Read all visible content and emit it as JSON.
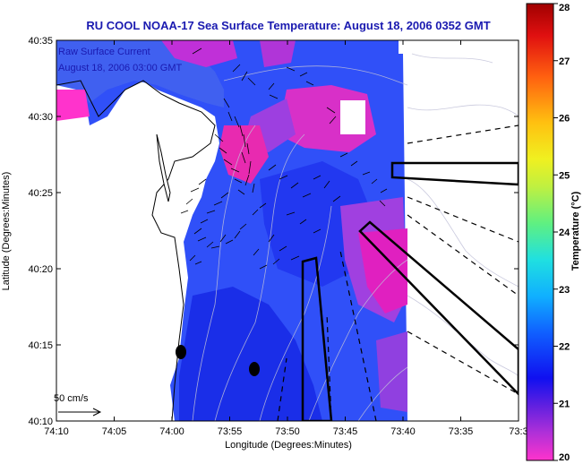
{
  "title": "RU COOL  NOAA-17  Sea Surface Temperature:  August 18, 2006 0352 GMT",
  "legend": {
    "line1": "Raw Surface Current",
    "line2": "August 18, 2006 03:00 GMT"
  },
  "scale_label": "50 cm/s",
  "axes": {
    "xlabel": "Longitude (Degrees:Minutes)",
    "ylabel": "Latitude (Degrees:Minutes)",
    "x_ticks": [
      "74:10",
      "74:05",
      "74:00",
      "73:55",
      "73:50",
      "73:45",
      "73:40",
      "73:35",
      "73:3"
    ],
    "y_ticks": [
      "40:35",
      "40:30",
      "40:25",
      "40:20",
      "40:15",
      "40:10"
    ]
  },
  "colorbar": {
    "label": "Temperature (°C)",
    "ticks": [
      "28",
      "27",
      "26",
      "25",
      "24",
      "23",
      "22",
      "21",
      "20"
    ],
    "range": [
      20,
      28
    ]
  },
  "colors": {
    "land": "#ffffff",
    "warm": "#e01ab8",
    "mid": "#4a4af0",
    "cool": "#2a50ff",
    "title": "#1a1ab0"
  }
}
